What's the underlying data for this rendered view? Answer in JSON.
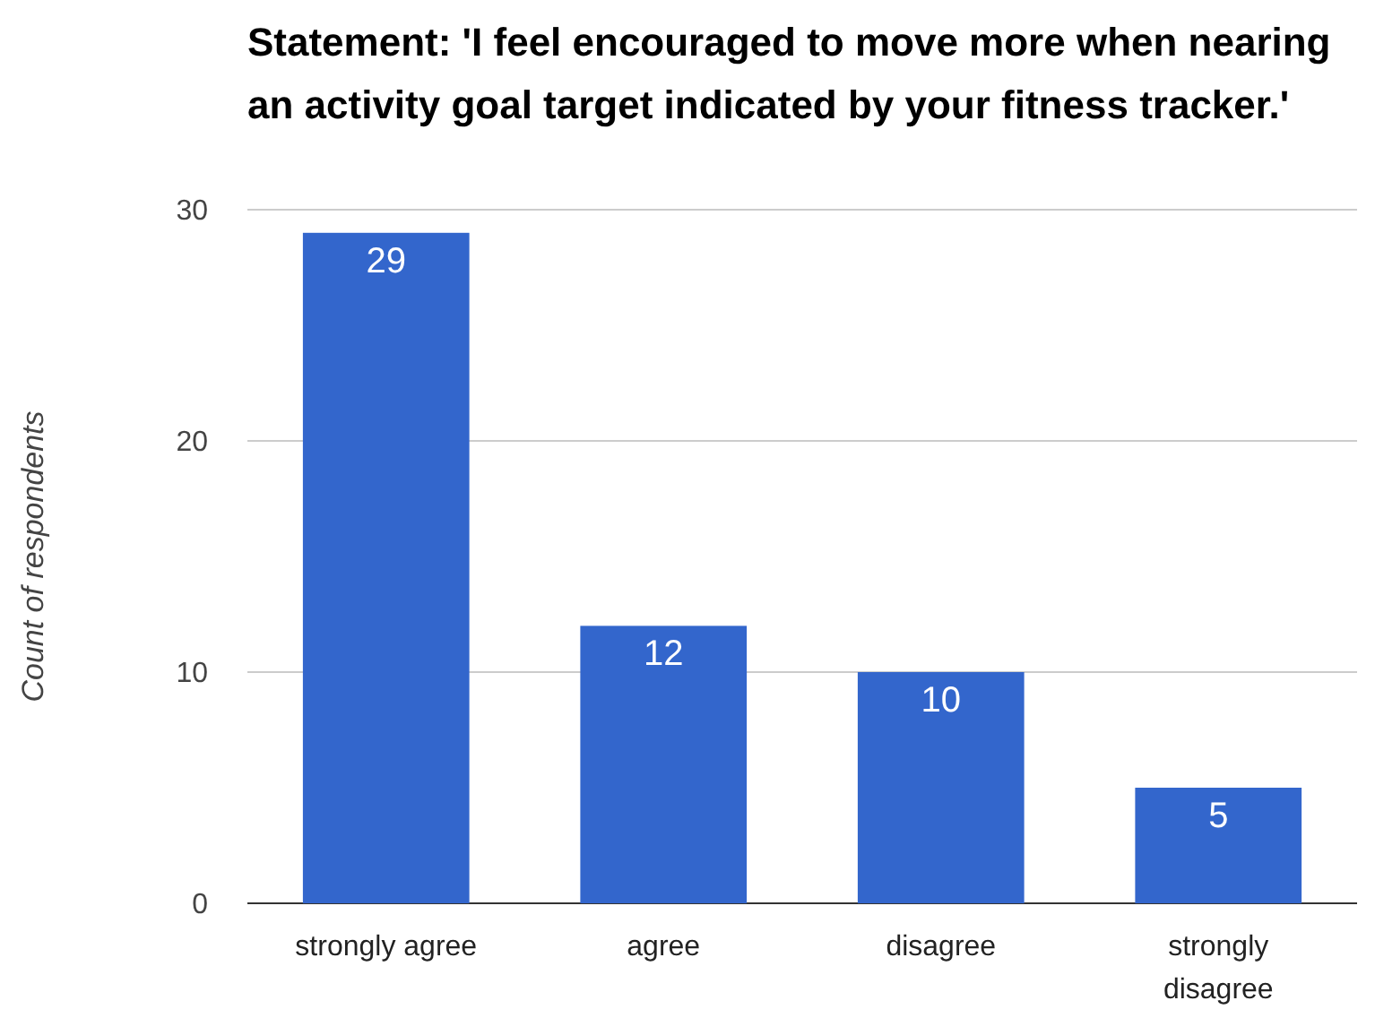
{
  "chart_data": {
    "type": "bar",
    "title": "Statement: 'I feel encouraged to move more when nearing an activity goal target indicated by your fitness tracker.'",
    "ylabel": "Count of respondents",
    "categories": [
      "strongly agree",
      "agree",
      "disagree",
      "strongly disagree"
    ],
    "values": [
      29,
      12,
      10,
      5
    ],
    "color": "#3366cc",
    "ylim": [
      0,
      30
    ],
    "yticks": [
      0,
      10,
      20,
      30
    ],
    "grid": "y",
    "data_labels": true
  }
}
